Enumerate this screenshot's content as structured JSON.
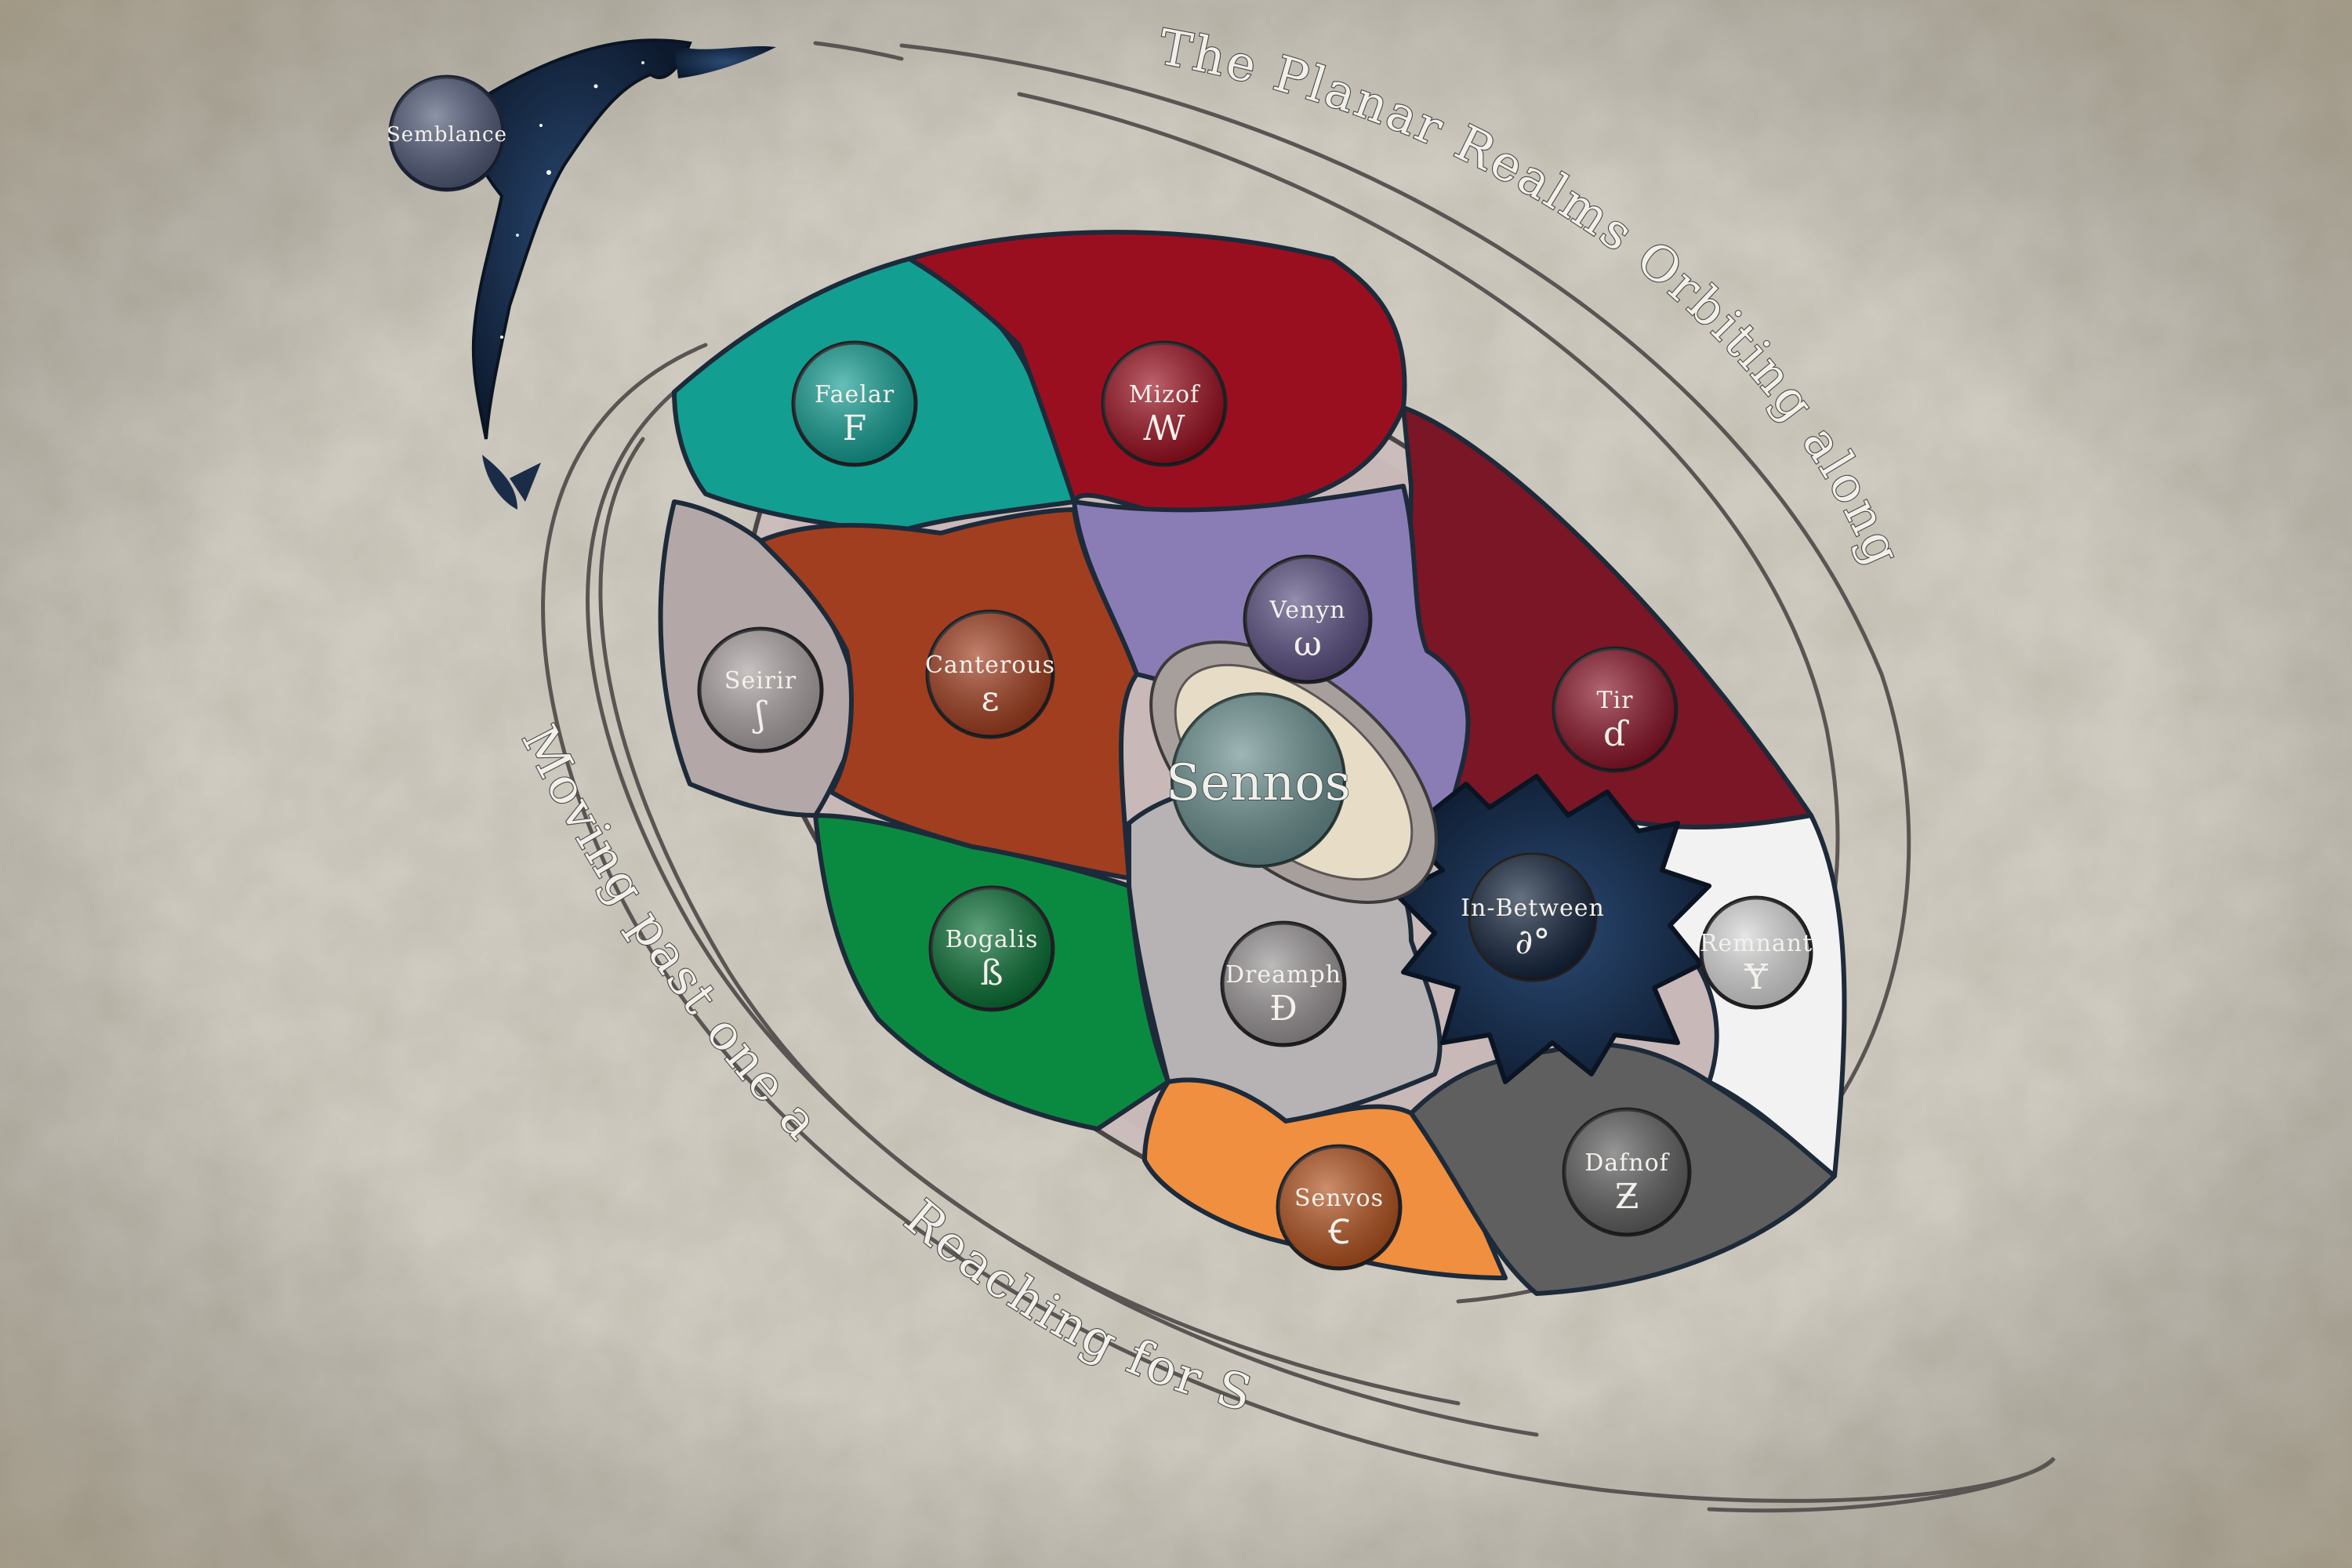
{
  "captions": {
    "top": "The Planar Realms Orbiting along the Planar Disk",
    "left": "Moving past one another,",
    "bottom": "Reaching for Sennos."
  },
  "semblance": {
    "name": "Semblance"
  },
  "center": {
    "name": "Sennos"
  },
  "realms": [
    {
      "id": "faelar",
      "name": "Faelar",
      "glyph": "F",
      "color": "#139e92"
    },
    {
      "id": "mizof",
      "name": "Mizof",
      "glyph": "ꟿ",
      "color": "#9a0f1f"
    },
    {
      "id": "seirir",
      "name": "Seirir",
      "glyph": "ʃ",
      "color": "#aba2a2"
    },
    {
      "id": "canterous",
      "name": "Canterous",
      "glyph": "ɛ",
      "color": "#a13e1f"
    },
    {
      "id": "venyn",
      "name": "Venyn",
      "glyph": "ω",
      "color": "#5b4f82"
    },
    {
      "id": "tir",
      "name": "Tir",
      "glyph": "ɗ",
      "color": "#8a1428"
    },
    {
      "id": "bogalis",
      "name": "Bogalis",
      "glyph": "ß",
      "color": "#0a6f35"
    },
    {
      "id": "in-between",
      "name": "In-Between",
      "glyph": "∂°",
      "color": "#14253d"
    },
    {
      "id": "remnant",
      "name": "Remnant",
      "glyph": "Ɏ",
      "color": "#d8d8d8"
    },
    {
      "id": "dreamph",
      "name": "Dreamph",
      "glyph": "Ɖ",
      "color": "#9a9596"
    },
    {
      "id": "senvos",
      "name": "Senvos",
      "glyph": "Ꞓ",
      "color": "#b2521f"
    },
    {
      "id": "dafnof",
      "name": "Dafnof",
      "glyph": "Ƶ",
      "color": "#5f5f5f"
    }
  ]
}
